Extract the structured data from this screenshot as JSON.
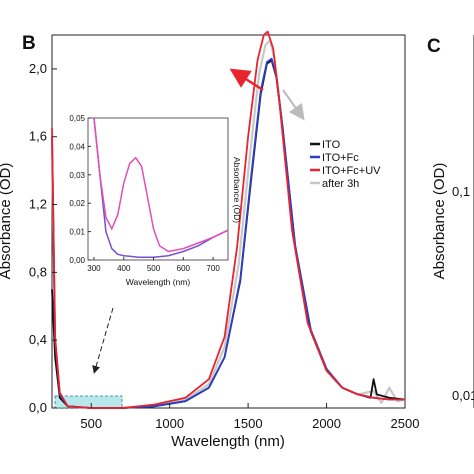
{
  "panels": {
    "left": "B",
    "right": "C"
  },
  "right_panel": {
    "ylabel": "Absorbance (OD)",
    "tick_labels": [
      "0,1",
      "0,01"
    ]
  },
  "colors": {
    "ITO": "#111111",
    "ITO+Fc": "#2b3fc8",
    "ITO+Fc+UV": "#e8242e",
    "after 3h": "#c8c8c8",
    "inset_line": "#7a4fd0",
    "inset_peak": "#e050b8",
    "highlight_box": "#7fd6dc",
    "arrow_red": "#e8242e",
    "arrow_grey": "#bbbbbb"
  },
  "chart_data": [
    {
      "type": "line",
      "xlabel": "Wavelength (nm)",
      "ylabel": "Absorbance (OD)",
      "xlim": [
        250,
        2500
      ],
      "ylim": [
        0,
        2.2
      ],
      "xticks": [
        500,
        1000,
        1500,
        2000,
        2500
      ],
      "xtick_labels": [
        "500",
        "1000",
        "1500",
        "2000",
        "2500"
      ],
      "yticks": [
        0,
        0.4,
        0.8,
        1.2,
        1.6,
        2.0
      ],
      "ytick_labels": [
        "0,0",
        "0,4",
        "0,8",
        "1,2",
        "1,6",
        "2,0"
      ],
      "legend_position": "right",
      "series": [
        {
          "name": "ITO",
          "x": [
            250,
            270,
            300,
            350,
            500,
            700,
            900,
            1100,
            1250,
            1350,
            1450,
            1520,
            1580,
            1620,
            1650,
            1680,
            1720,
            1800,
            1900,
            2000,
            2100,
            2200,
            2280,
            2300,
            2320,
            2400,
            2500
          ],
          "y": [
            0.7,
            0.3,
            0.06,
            0.01,
            0.0,
            0.0,
            0.01,
            0.04,
            0.12,
            0.3,
            0.75,
            1.35,
            1.85,
            2.03,
            2.05,
            1.95,
            1.65,
            0.95,
            0.45,
            0.22,
            0.12,
            0.08,
            0.06,
            0.17,
            0.08,
            0.06,
            0.05
          ]
        },
        {
          "name": "ITO+Fc",
          "x": [
            250,
            270,
            300,
            350,
            500,
            700,
            900,
            1100,
            1250,
            1350,
            1450,
            1520,
            1580,
            1620,
            1650,
            1680,
            1720,
            1800,
            1900,
            2000,
            2100,
            2200,
            2300,
            2400,
            2500
          ],
          "y": [
            1.6,
            0.4,
            0.08,
            0.01,
            0.0,
            0.0,
            0.01,
            0.04,
            0.12,
            0.3,
            0.76,
            1.37,
            1.87,
            2.04,
            2.06,
            1.96,
            1.66,
            0.96,
            0.46,
            0.23,
            0.12,
            0.08,
            0.06,
            0.05,
            0.05
          ]
        },
        {
          "name": "ITO+Fc+UV",
          "x": [
            250,
            270,
            300,
            350,
            500,
            700,
            900,
            1100,
            1250,
            1350,
            1430,
            1500,
            1560,
            1600,
            1625,
            1660,
            1700,
            1780,
            1880,
            2000,
            2100,
            2200,
            2300,
            2400,
            2500
          ],
          "y": [
            1.65,
            0.42,
            0.09,
            0.01,
            0.0,
            0.0,
            0.02,
            0.06,
            0.17,
            0.42,
            0.95,
            1.6,
            2.05,
            2.2,
            2.22,
            2.12,
            1.8,
            1.05,
            0.5,
            0.22,
            0.12,
            0.08,
            0.06,
            0.05,
            0.05
          ]
        },
        {
          "name": "after 3h",
          "x": [
            250,
            270,
            300,
            350,
            500,
            700,
            900,
            1100,
            1250,
            1350,
            1440,
            1510,
            1570,
            1610,
            1640,
            1670,
            1710,
            1790,
            1890,
            2000,
            2100,
            2200,
            2300,
            2350,
            2400,
            2450,
            2500
          ],
          "y": [
            1.55,
            0.38,
            0.07,
            0.01,
            0.0,
            0.0,
            0.015,
            0.05,
            0.14,
            0.36,
            0.85,
            1.48,
            1.97,
            2.14,
            2.17,
            2.05,
            1.72,
            1.0,
            0.48,
            0.23,
            0.12,
            0.08,
            0.1,
            0.03,
            0.12,
            0.04,
            0.05
          ]
        }
      ]
    },
    {
      "type": "line",
      "xlabel": "Wavelength (nm)",
      "ylabel": "Absorbance (OD)",
      "xlim": [
        280,
        750
      ],
      "ylim": [
        0,
        0.05
      ],
      "xticks": [
        300,
        400,
        500,
        600,
        700
      ],
      "xtick_labels": [
        "300",
        "400",
        "500",
        "600",
        "700"
      ],
      "yticks": [
        0,
        0.01,
        0.02,
        0.03,
        0.04,
        0.05
      ],
      "ytick_labels": [
        "0,00",
        "0,01",
        "0,02",
        "0,03",
        "0,04",
        "0,05"
      ],
      "series": [
        {
          "x": [
            300,
            320,
            340,
            360,
            380,
            400,
            450,
            500,
            550,
            600,
            650,
            700,
            750
          ],
          "y": [
            0.05,
            0.03,
            0.01,
            0.004,
            0.002,
            0.0015,
            0.001,
            0.001,
            0.0015,
            0.003,
            0.005,
            0.008,
            0.0105
          ]
        },
        {
          "x": [
            300,
            320,
            340,
            360,
            380,
            400,
            420,
            440,
            460,
            480,
            500,
            520,
            550,
            600,
            650,
            700,
            750
          ],
          "y": [
            0.05,
            0.03,
            0.015,
            0.011,
            0.016,
            0.027,
            0.034,
            0.036,
            0.033,
            0.022,
            0.011,
            0.005,
            0.003,
            0.004,
            0.006,
            0.008,
            0.0105
          ]
        }
      ]
    }
  ]
}
